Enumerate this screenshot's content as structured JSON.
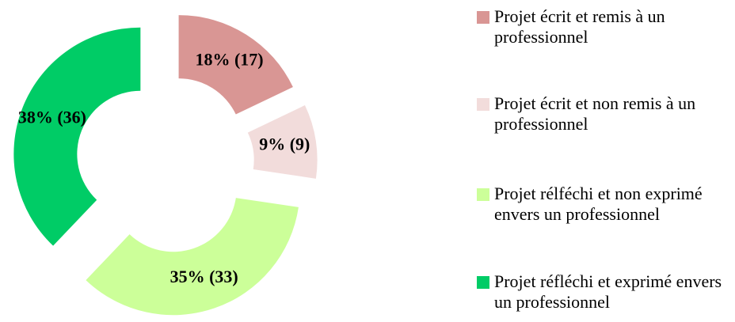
{
  "chart_data": {
    "type": "donut",
    "categories": [
      "Projet écrit et remis à un professionnel",
      "Projet écrit et non remis à un professionnel",
      "Projet rélféchi et non exprimé envers un professionnel",
      "Projet réfléchi et exprimé envers un professionnel"
    ],
    "values": [
      17,
      9,
      33,
      36
    ],
    "value_labels": [
      "18% (17)",
      "9% (9)",
      "35% (33)",
      "38% (36)"
    ],
    "colors": [
      "#d99694",
      "#f2dcdb",
      "#ccff99",
      "#00cc66"
    ],
    "legend": "right"
  }
}
